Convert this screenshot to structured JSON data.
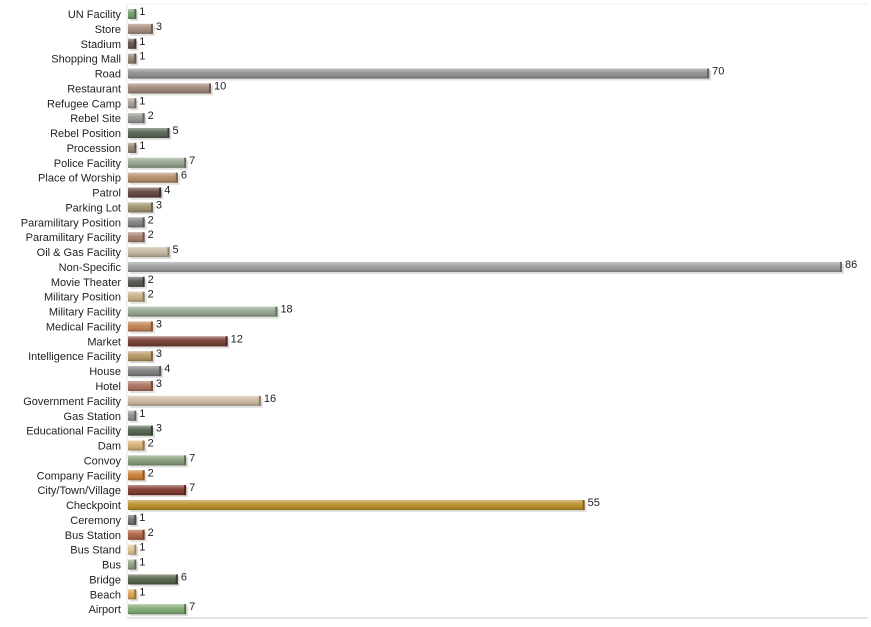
{
  "chart_data": {
    "type": "bar",
    "orientation": "horizontal",
    "title": "",
    "xlabel": "",
    "ylabel": "",
    "xlim": [
      0,
      86
    ],
    "grid": false,
    "legend": "none",
    "categories": [
      "UN Facility",
      "Store",
      "Stadium",
      "Shopping Mall",
      "Road",
      "Restaurant",
      "Refugee Camp",
      "Rebel Site",
      "Rebel Position",
      "Procession",
      "Police Facility",
      "Place of Worship",
      "Patrol",
      "Parking Lot",
      "Paramilitary Position",
      "Paramilitary Facility",
      "Oil & Gas Facility",
      "Non-Specific",
      "Movie Theater",
      "Military Position",
      "Military Facility",
      "Medical Facility",
      "Market",
      "Intelligence Facility",
      "House",
      "Hotel",
      "Government Facility",
      "Gas Station",
      "Educational Facility",
      "Dam",
      "Convoy",
      "Company Facility",
      "City/Town/Village",
      "Checkpoint",
      "Ceremony",
      "Bus Station",
      "Bus Stand",
      "Bus",
      "Bridge",
      "Beach",
      "Airport"
    ],
    "values": [
      1,
      3,
      1,
      1,
      70,
      10,
      1,
      2,
      5,
      1,
      7,
      6,
      4,
      3,
      2,
      2,
      5,
      86,
      2,
      2,
      18,
      3,
      12,
      3,
      4,
      3,
      16,
      1,
      3,
      2,
      7,
      2,
      7,
      55,
      1,
      2,
      1,
      1,
      6,
      1,
      7
    ],
    "value_labels": [
      "1",
      "3",
      "1",
      "1",
      "70",
      "10",
      "1",
      "2",
      "5",
      "1",
      "7",
      "6",
      "4",
      "3",
      "2",
      "2",
      "5",
      "86",
      "2",
      "2",
      "18",
      "3",
      "12",
      "3",
      "4",
      "3",
      "16",
      "1",
      "3",
      "2",
      "7",
      "2",
      "7",
      "55",
      "1",
      "2",
      "1",
      "1",
      "6",
      "1",
      "7"
    ],
    "colors": [
      "#6e9a63",
      "#a08676",
      "#5c4b45",
      "#8f7d6c",
      "#8a8a8a",
      "#9a7f72",
      "#a39a92",
      "#8f918c",
      "#4d5a4a",
      "#8c7f6a",
      "#8fa088",
      "#b08862",
      "#5a3a32",
      "#9a8c68",
      "#7b7b7b",
      "#a0786a",
      "#c3b39a",
      "#999999",
      "#4a4e48",
      "#c7ab80",
      "#8ea088",
      "#c07a4a",
      "#6e3328",
      "#b0925a",
      "#7a7a7a",
      "#a66a55",
      "#c8b49a",
      "#8a8a8a",
      "#4a5a44",
      "#d2ac6a",
      "#7f9a72",
      "#c87a2a",
      "#7a2e22",
      "#b88a1e",
      "#6a6a6a",
      "#a85a3a",
      "#ddc290",
      "#8a9a7a",
      "#4a5a3e",
      "#d8a04a",
      "#7aa66a"
    ]
  }
}
